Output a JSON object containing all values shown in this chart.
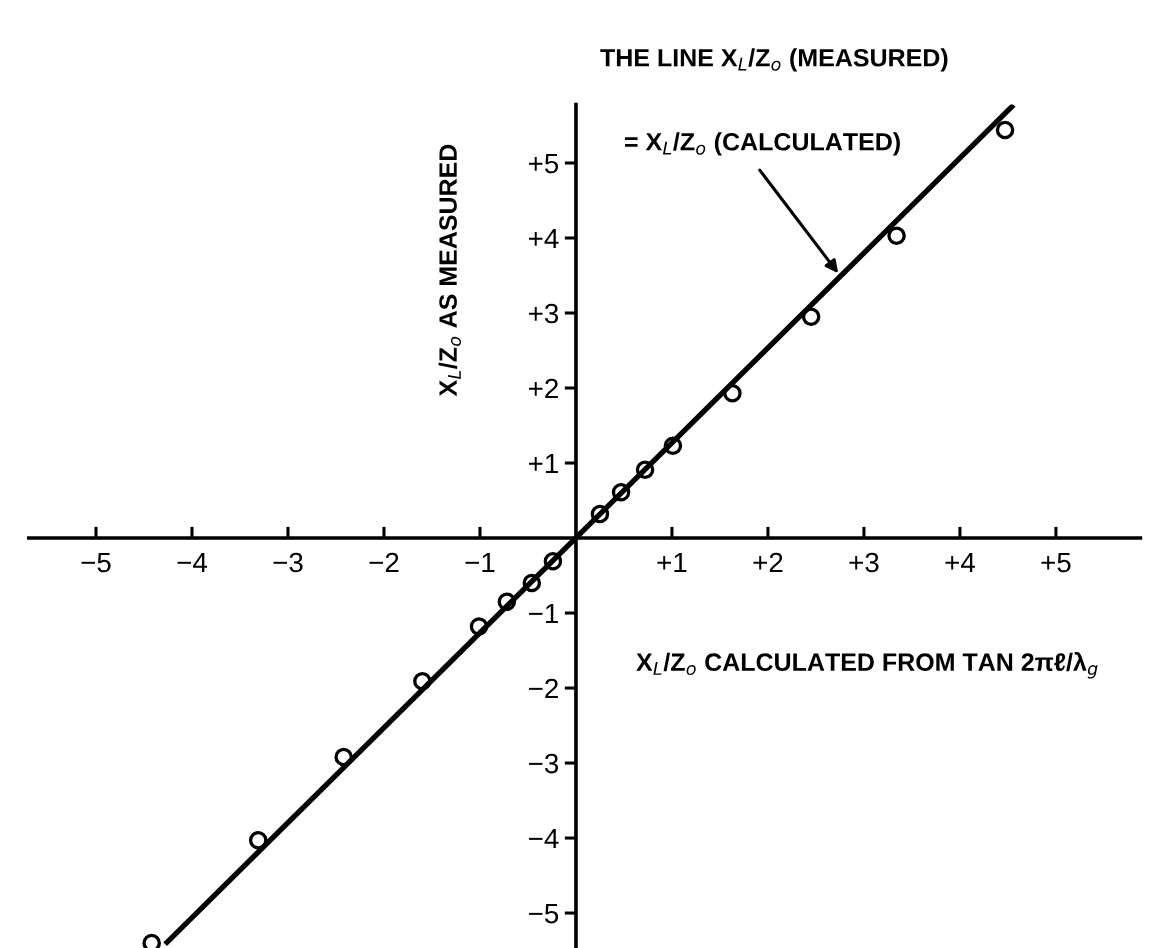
{
  "chart_data": {
    "type": "scatter",
    "xlabel": "X$_{L}$/Z$_{o}$ CALCULATED FROM TAN 2πℓ/λ$_{g}$",
    "ylabel": "X$_{L}$/Z$_{o}$ AS MEASURED",
    "annotations": [
      "THE LINE X$_{L}$/Z$_{o}$ (MEASURED)",
      {
        "text": "= X$_{L}$/Z$_{o}$ (CALCULATED)",
        "x": 2.75,
        "y": 3.5
      }
    ],
    "series": [
      {
        "type": "line",
        "color": "#000000",
        "line_style": "solid",
        "marker": "none",
        "x": [
          -4.26,
          4.54
        ],
        "values": [
          -5.39,
          5.75
        ]
      },
      {
        "color": "#000000",
        "marker": "circle",
        "x": [
          -4.42,
          -3.31,
          -2.42,
          -1.6,
          -1.01,
          -0.72,
          -0.46,
          -0.24,
          0.25,
          0.47,
          0.72,
          1.01,
          1.63,
          2.45,
          3.34,
          4.47
        ],
        "values": [
          -5.4,
          -4.03,
          -2.92,
          -1.91,
          -1.18,
          -0.85,
          -0.6,
          -0.31,
          0.32,
          0.61,
          0.91,
          1.23,
          1.93,
          2.95,
          4.03,
          5.44
        ]
      }
    ],
    "xlim": [
      -5.7,
      5.88
    ],
    "ylim": [
      -5.45,
      5.78
    ],
    "xticks": [
      {
        "value": -5,
        "label": "−5"
      },
      {
        "value": -4,
        "label": "−4"
      },
      {
        "value": -3,
        "label": "−3"
      },
      {
        "value": -2,
        "label": "−2"
      },
      {
        "value": -1,
        "label": "−1"
      },
      {
        "value": 1,
        "label": "+1"
      },
      {
        "value": 2,
        "label": "+2"
      },
      {
        "value": 3,
        "label": "+3"
      },
      {
        "value": 4,
        "label": "+4"
      },
      {
        "value": 5,
        "label": "+5"
      }
    ],
    "yticks": [
      {
        "value": -5,
        "label": "−5"
      },
      {
        "value": -4,
        "label": "−4"
      },
      {
        "value": -3,
        "label": "−3"
      },
      {
        "value": -2,
        "label": "−2"
      },
      {
        "value": -1,
        "label": "−1"
      },
      {
        "value": 1,
        "label": "+1"
      },
      {
        "value": 2,
        "label": "+2"
      },
      {
        "value": 3,
        "label": "+3"
      },
      {
        "value": 4,
        "label": "+4"
      },
      {
        "value": 5,
        "label": "+5"
      }
    ],
    "grid": false,
    "legend": false
  }
}
